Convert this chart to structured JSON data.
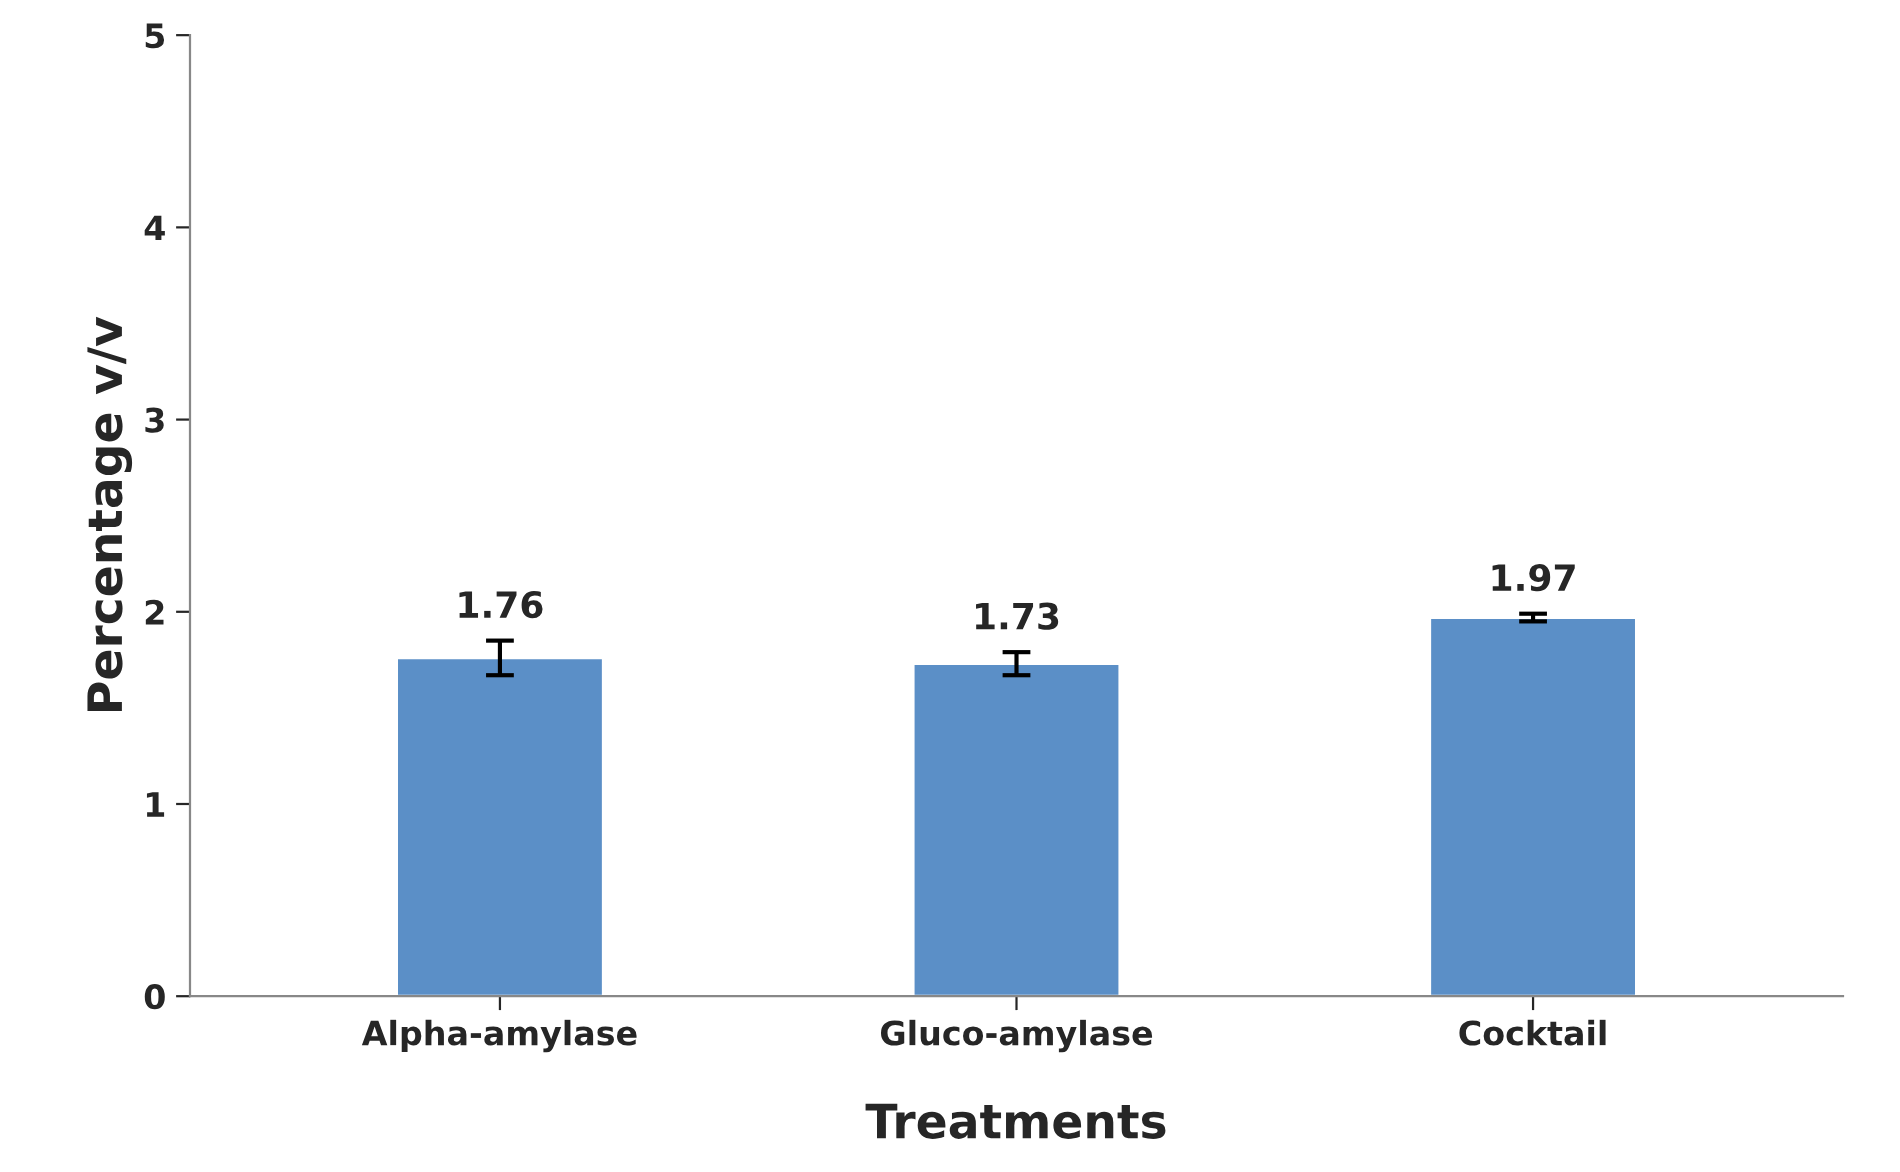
{
  "chart_data": {
    "type": "bar",
    "xlabel": "Treatments",
    "ylabel": "Percentage v/v",
    "categories": [
      "Alpha-amylase",
      "Gluco-amylase",
      "Cocktail"
    ],
    "values": [
      1.76,
      1.73,
      1.97
    ],
    "errors": [
      0.09,
      0.06,
      0.02
    ],
    "color": "#5b8fc7",
    "ylim": [
      0,
      5
    ],
    "yticks": [
      0,
      1,
      2,
      3,
      4,
      5
    ],
    "data_labels": true,
    "grid": false
  }
}
